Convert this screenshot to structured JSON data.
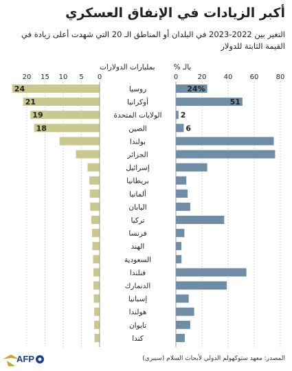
{
  "title": "أكبر الزيادات في الإنفاق العسكري",
  "subtitle": "التغير بين 2022-2023 في البلدان أو المناطق الـ 20 التي شهدت أعلى زيادة في القيمة الثابتة للدولار",
  "source": "المصدر: معهد ستوكهولم الدولي لأبحاث السلام (سيبري)",
  "colors": {
    "left_bar": "#c9c98f",
    "right_bar": "#6f8da6",
    "grid": "#b8b8b8"
  },
  "chart_data": [
    {
      "type": "bar",
      "orientation": "horizontal",
      "direction": "right-to-left",
      "title": "بمليارات الدولارات",
      "xlim": [
        0,
        24
      ],
      "ticks": [
        0,
        5,
        10,
        15,
        20
      ],
      "categories": [
        "روسيا",
        "أوكرانيا",
        "الولايات المتحدة",
        "الصين",
        "بولندا",
        "الجزائر",
        "إسرائيل",
        "بريطانيا",
        "ألمانيا",
        "اليابان",
        "تركيا",
        "فرنسا",
        "الهند",
        "السعودية",
        "فنلندا",
        "الدنمارك",
        "إسبانيا",
        "هولندا",
        "تايوان",
        "كندا"
      ],
      "values": [
        24,
        21,
        19,
        18,
        11,
        6.5,
        3.3,
        2.8,
        2.7,
        2.6,
        2.3,
        2.1,
        2.0,
        1.8,
        1.7,
        1.7,
        1.6,
        1.5,
        1.5,
        1.4
      ],
      "data_labels": [
        "24",
        "21",
        "19",
        "18",
        "",
        "",
        "",
        "",
        "",
        "",
        "",
        "",
        "",
        "",
        "",
        "",
        "",
        "",
        "",
        ""
      ]
    },
    {
      "type": "bar",
      "orientation": "horizontal",
      "title": "بالـ %",
      "xlim": [
        0,
        80
      ],
      "ticks": [
        0,
        20,
        40,
        60,
        80
      ],
      "categories": [
        "روسيا",
        "أوكرانيا",
        "الولايات المتحدة",
        "الصين",
        "بولندا",
        "الجزائر",
        "إسرائيل",
        "بريطانيا",
        "ألمانيا",
        "اليابان",
        "تركيا",
        "فرنسا",
        "الهند",
        "السعودية",
        "فنلندا",
        "الدنمارك",
        "إسبانيا",
        "هولندا",
        "تايوان",
        "كندا"
      ],
      "values": [
        24,
        51,
        2,
        6,
        75,
        76,
        24,
        8,
        9,
        11,
        37,
        6.5,
        4.2,
        4.3,
        54,
        39,
        9.8,
        14,
        11,
        6.8
      ],
      "data_labels": [
        "24%",
        "51",
        "2",
        "6",
        "",
        "",
        "",
        "",
        "",
        "",
        "",
        "",
        "",
        "",
        "",
        "",
        "",
        "",
        "",
        ""
      ]
    }
  ]
}
